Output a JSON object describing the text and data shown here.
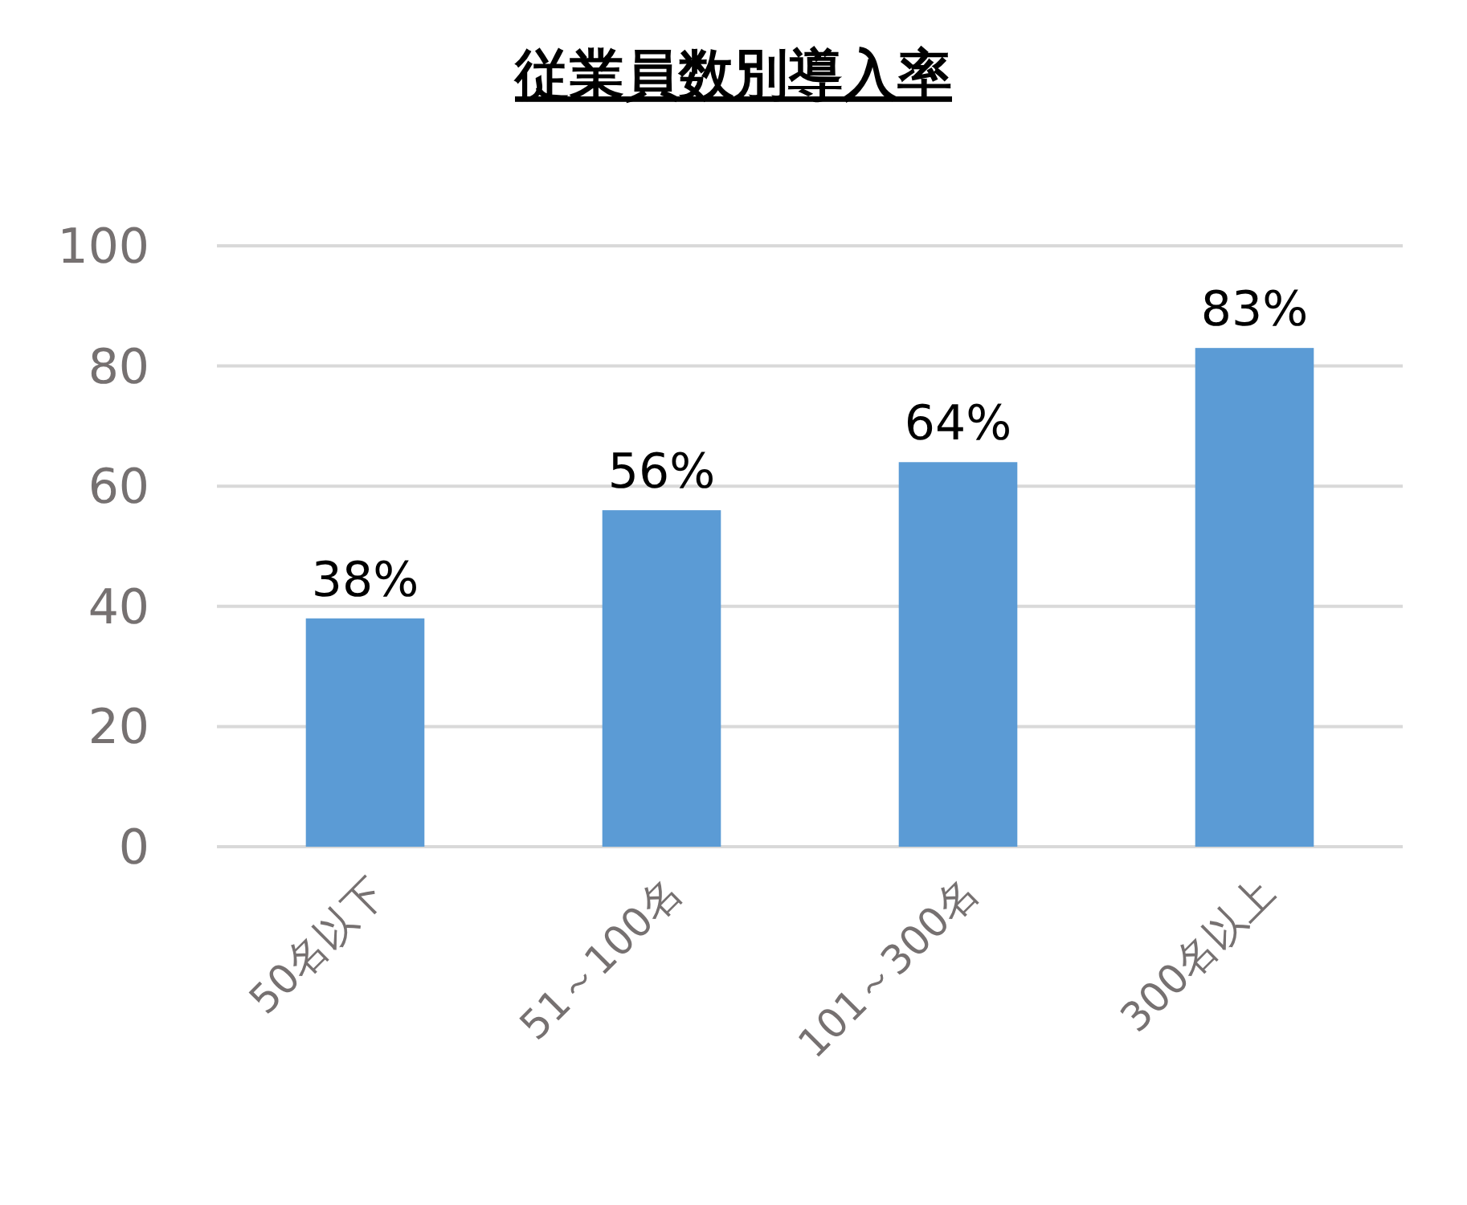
{
  "chart_data": {
    "type": "bar",
    "title": "従業員数別導入率",
    "categories": [
      "50名以下",
      "51～100名",
      "101～300名",
      "300名以上"
    ],
    "values": [
      38,
      56,
      64,
      83
    ],
    "value_labels": [
      "38%",
      "56%",
      "64%",
      "83%"
    ],
    "color": "#5b9bd5",
    "ylim": [
      0,
      100
    ],
    "yticks": [
      0,
      20,
      40,
      60,
      80,
      100
    ],
    "grid": "y"
  }
}
